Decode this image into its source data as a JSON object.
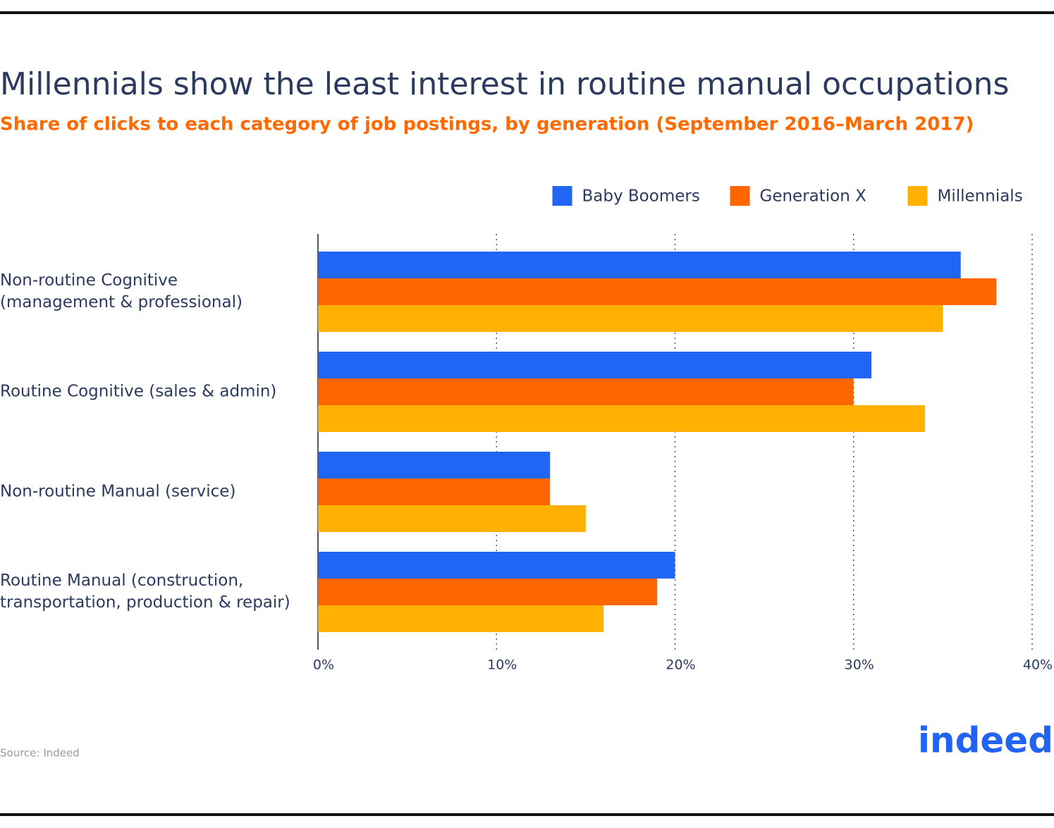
{
  "chart_data": {
    "type": "hbar",
    "title": "Millennials show the least interest in routine manual occupations",
    "subtitle": "Share of clicks to each category of job postings, by generation (September 2016–March 2017)",
    "categories": [
      "Non-routine Cognitive (management & professional)",
      "Routine Cognitive (sales & admin)",
      "Non-routine Manual (service)",
      "Routine Manual (construction, transportation, production & repair)"
    ],
    "series": [
      {
        "name": "Baby Boomers",
        "color": "#2165f5",
        "values": [
          36,
          31,
          13,
          20
        ]
      },
      {
        "name": "Generation X",
        "color": "#ff6600",
        "values": [
          38,
          30,
          13,
          19
        ]
      },
      {
        "name": "Millennials",
        "color": "#ffb000",
        "values": [
          35,
          34,
          15,
          16
        ]
      }
    ],
    "xlim": [
      0,
      40
    ],
    "xticks": [
      {
        "value": 0,
        "label": "0%"
      },
      {
        "value": 10,
        "label": "10%"
      },
      {
        "value": 20,
        "label": "20%"
      },
      {
        "value": 30,
        "label": "30%"
      },
      {
        "value": 40,
        "label": "40%"
      }
    ],
    "grid": true,
    "legend": "top-right",
    "source": "Source: Indeed",
    "logo": "indeed"
  }
}
